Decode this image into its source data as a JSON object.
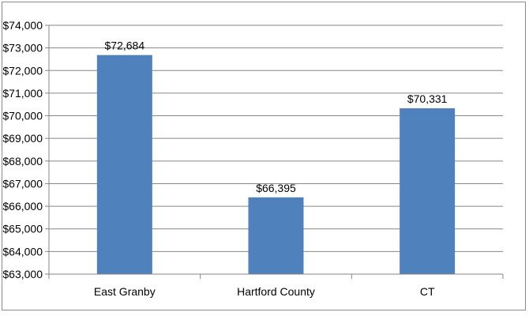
{
  "chart_data": {
    "type": "bar",
    "categories": [
      "East Granby",
      "Hartford County",
      "CT"
    ],
    "values": [
      72684,
      66395,
      70331
    ],
    "data_labels": [
      "$72,684",
      "$66,395",
      "$70,331"
    ],
    "ylim": [
      63000,
      74000
    ],
    "ytick_step": 1000,
    "yticks": [
      "$63,000",
      "$64,000",
      "$65,000",
      "$66,000",
      "$67,000",
      "$68,000",
      "$69,000",
      "$70,000",
      "$71,000",
      "$72,000",
      "$73,000",
      "$74,000"
    ],
    "title": "",
    "xlabel": "",
    "ylabel": "",
    "grid": true,
    "legend": "none",
    "colors": {
      "bar": "#4f81bd",
      "grid": "#868686",
      "axis": "#868686",
      "frame": "#8c8c8c"
    }
  }
}
